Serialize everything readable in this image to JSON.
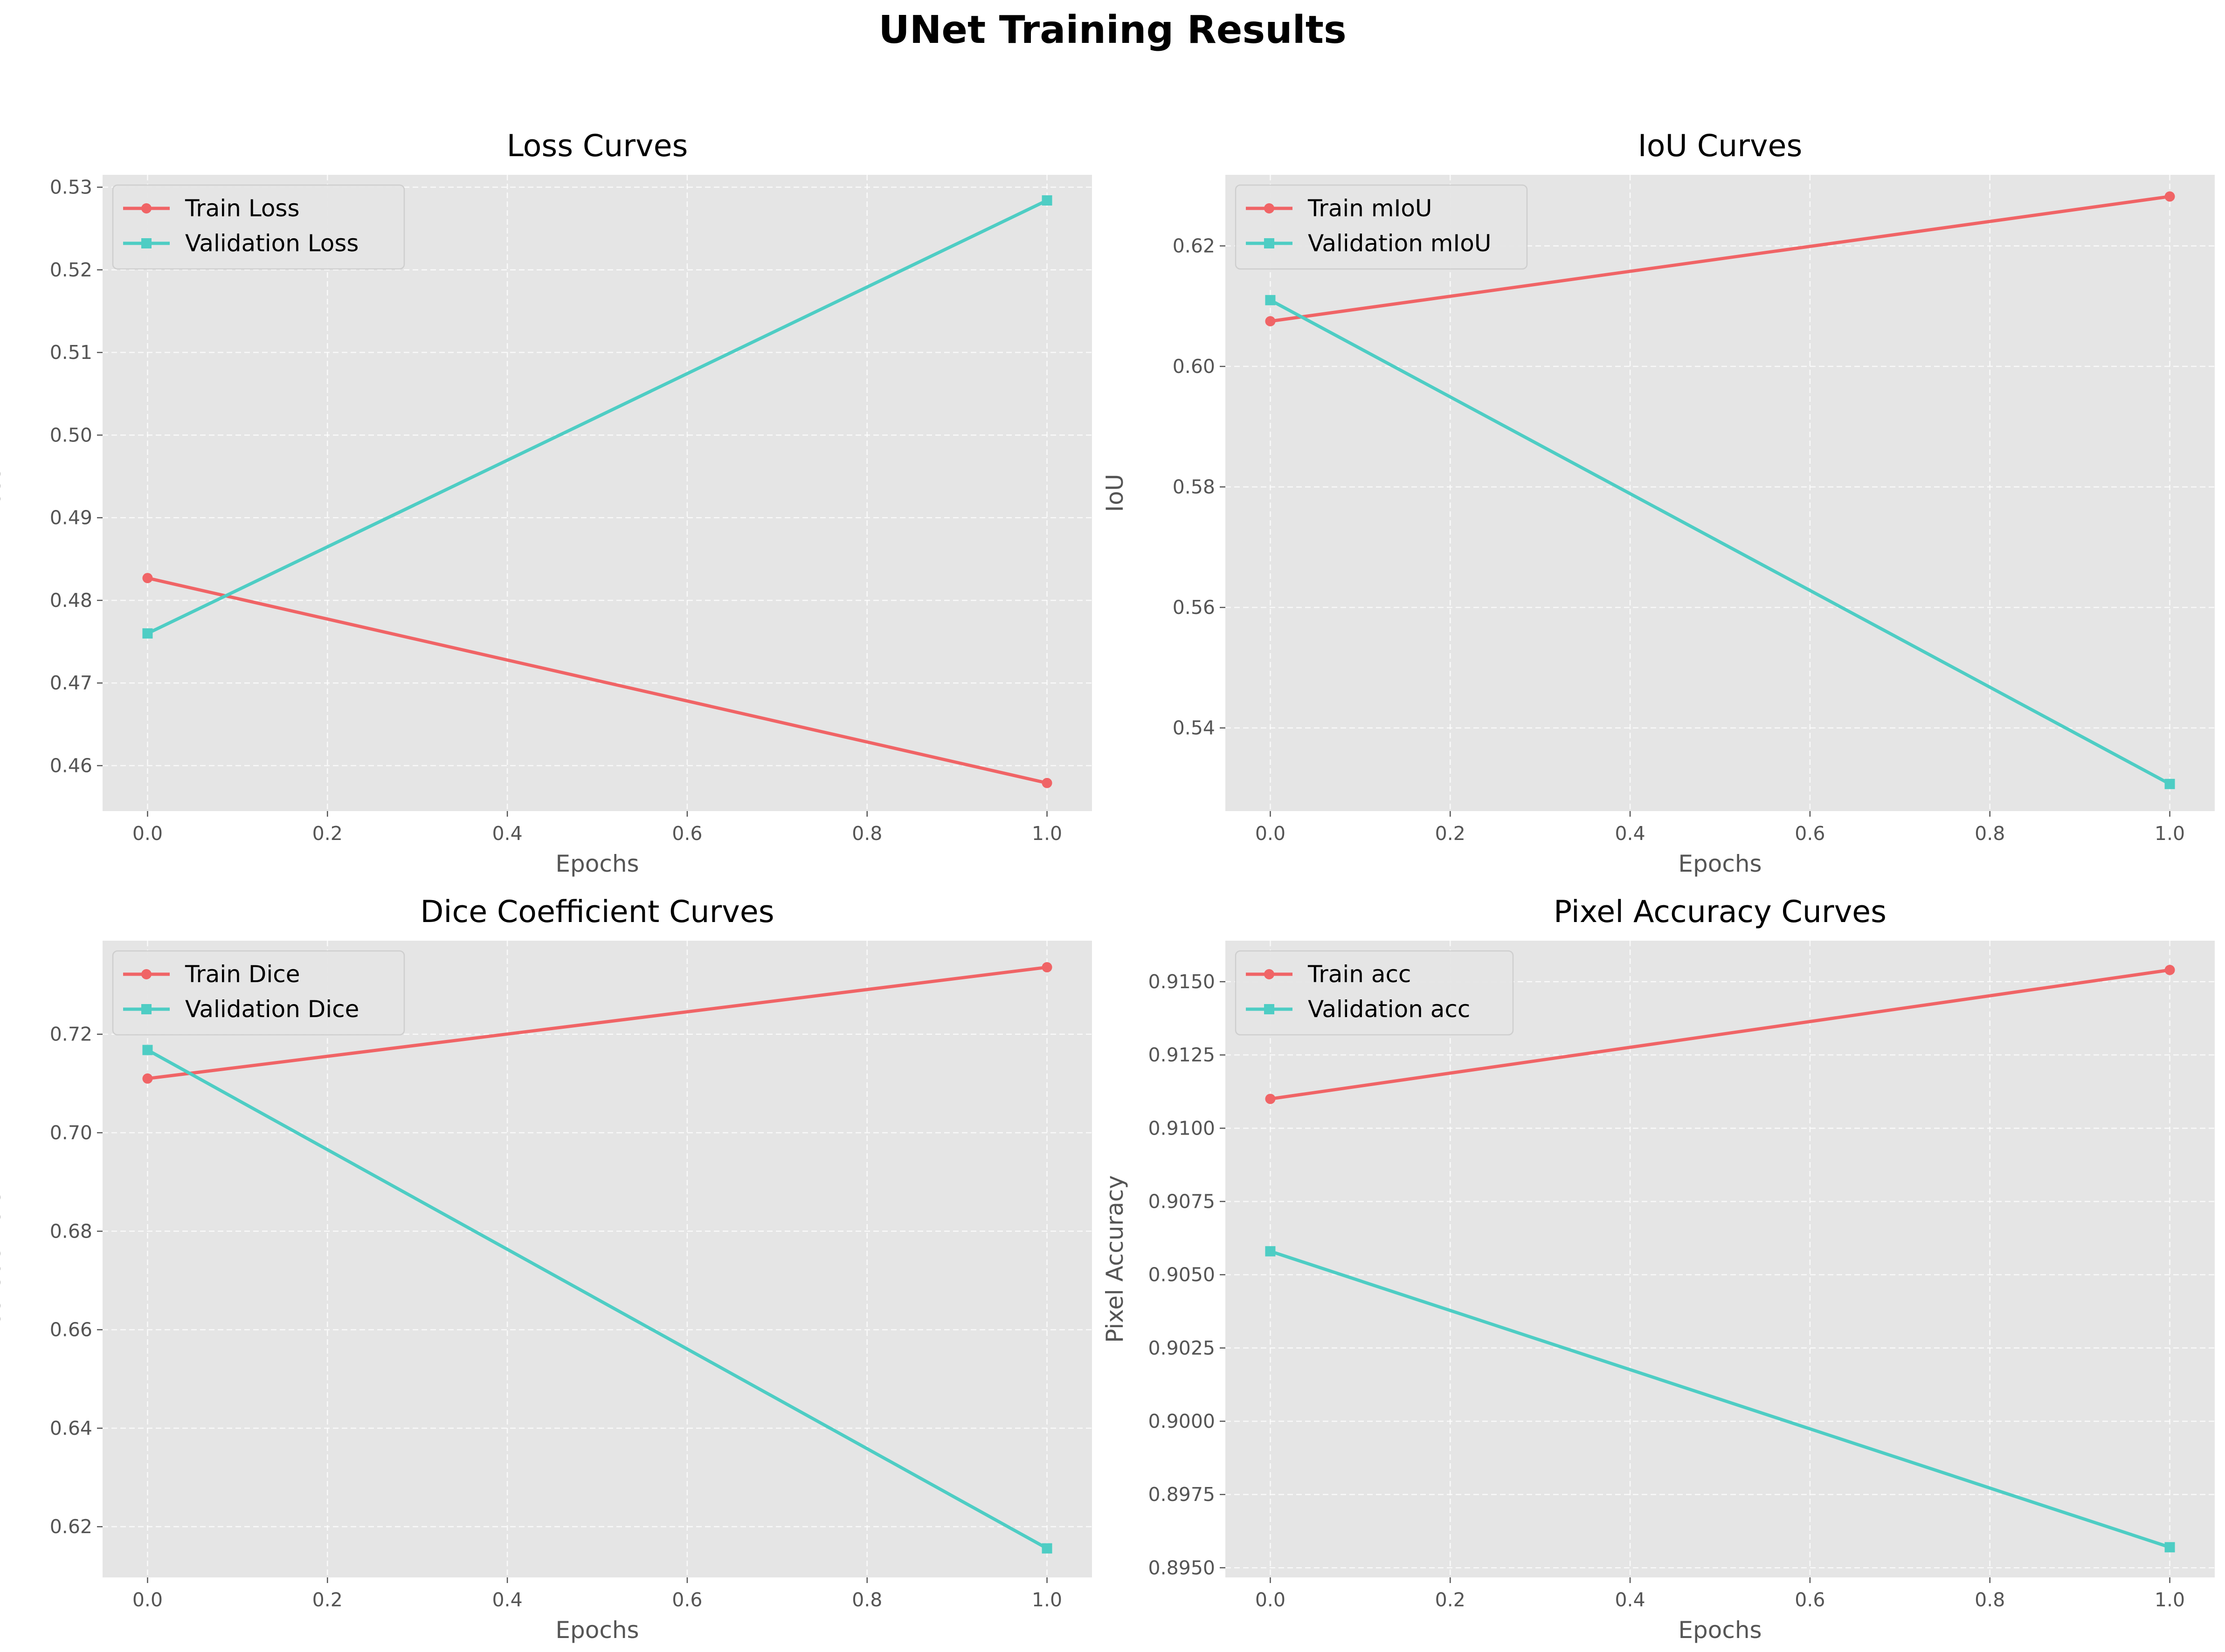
{
  "figure": {
    "title": "UNet Training Results"
  },
  "colors": {
    "train": "#f06466",
    "validation": "#4ecdc4",
    "plot_background": "#e5e5e5"
  },
  "chart_data": [
    {
      "id": "loss",
      "type": "line",
      "title": "Loss Curves",
      "xlabel": "Epochs",
      "ylabel": "Loss",
      "legend_position": "upper-left",
      "grid": true,
      "xlim": [
        -0.05,
        1.05
      ],
      "ylim": [
        0.4545,
        0.5315
      ],
      "x_ticks": [
        0.0,
        0.2,
        0.4,
        0.6,
        0.8,
        1.0
      ],
      "x_tick_labels": [
        "0.0",
        "0.2",
        "0.4",
        "0.6",
        "0.8",
        "1.0"
      ],
      "y_ticks": [
        0.46,
        0.47,
        0.48,
        0.49,
        0.5,
        0.51,
        0.52,
        0.53
      ],
      "y_tick_labels": [
        "0.46",
        "0.47",
        "0.48",
        "0.49",
        "0.50",
        "0.51",
        "0.52",
        "0.53"
      ],
      "x": [
        0,
        1
      ],
      "series": [
        {
          "name": "Train Loss",
          "values": [
            0.4827,
            0.4579
          ],
          "marker": "circle",
          "color_key": "train"
        },
        {
          "name": "Validation Loss",
          "values": [
            0.476,
            0.5284
          ],
          "marker": "square",
          "color_key": "validation"
        }
      ]
    },
    {
      "id": "iou",
      "type": "line",
      "title": "IoU Curves",
      "xlabel": "Epochs",
      "ylabel": "IoU",
      "legend_position": "upper-left",
      "grid": true,
      "xlim": [
        -0.05,
        1.05
      ],
      "ylim": [
        0.5262,
        0.6318
      ],
      "x_ticks": [
        0.0,
        0.2,
        0.4,
        0.6,
        0.8,
        1.0
      ],
      "x_tick_labels": [
        "0.0",
        "0.2",
        "0.4",
        "0.6",
        "0.8",
        "1.0"
      ],
      "y_ticks": [
        0.54,
        0.56,
        0.58,
        0.6,
        0.62
      ],
      "y_tick_labels": [
        "0.54",
        "0.56",
        "0.58",
        "0.60",
        "0.62"
      ],
      "x": [
        0,
        1
      ],
      "series": [
        {
          "name": "Train mIoU",
          "values": [
            0.6075,
            0.6282
          ],
          "marker": "circle",
          "color_key": "train"
        },
        {
          "name": "Validation mIoU",
          "values": [
            0.611,
            0.5307
          ],
          "marker": "square",
          "color_key": "validation"
        }
      ]
    },
    {
      "id": "dice",
      "type": "line",
      "title": "Dice Coefficient Curves",
      "xlabel": "Epochs",
      "ylabel": "Dice Coefficient",
      "legend_position": "upper-left",
      "grid": true,
      "xlim": [
        -0.05,
        1.05
      ],
      "ylim": [
        0.6097,
        0.739
      ],
      "x_ticks": [
        0.0,
        0.2,
        0.4,
        0.6,
        0.8,
        1.0
      ],
      "x_tick_labels": [
        "0.0",
        "0.2",
        "0.4",
        "0.6",
        "0.8",
        "1.0"
      ],
      "y_ticks": [
        0.62,
        0.64,
        0.66,
        0.68,
        0.7,
        0.72
      ],
      "y_tick_labels": [
        "0.62",
        "0.64",
        "0.66",
        "0.68",
        "0.70",
        "0.72"
      ],
      "x": [
        0,
        1
      ],
      "series": [
        {
          "name": "Train Dice",
          "values": [
            0.711,
            0.7336
          ],
          "marker": "circle",
          "color_key": "train"
        },
        {
          "name": "Validation Dice",
          "values": [
            0.7168,
            0.6156
          ],
          "marker": "square",
          "color_key": "validation"
        }
      ]
    },
    {
      "id": "pixel_accuracy",
      "type": "line",
      "title": "Pixel Accuracy Curves",
      "xlabel": "Epochs",
      "ylabel": "Pixel Accuracy",
      "legend_position": "upper-left",
      "grid": true,
      "xlim": [
        -0.05,
        1.05
      ],
      "ylim": [
        0.89467,
        0.9164
      ],
      "x_ticks": [
        0.0,
        0.2,
        0.4,
        0.6,
        0.8,
        1.0
      ],
      "x_tick_labels": [
        "0.0",
        "0.2",
        "0.4",
        "0.6",
        "0.8",
        "1.0"
      ],
      "y_ticks": [
        0.895,
        0.8975,
        0.9,
        0.9025,
        0.905,
        0.9075,
        0.91,
        0.9125,
        0.915
      ],
      "y_tick_labels": [
        "0.8950",
        "0.8975",
        "0.9000",
        "0.9025",
        "0.9050",
        "0.9075",
        "0.9100",
        "0.9125",
        "0.9150"
      ],
      "x": [
        0,
        1
      ],
      "series": [
        {
          "name": "Train acc",
          "values": [
            0.911,
            0.9154
          ],
          "marker": "circle",
          "color_key": "train"
        },
        {
          "name": "Validation acc",
          "values": [
            0.9058,
            0.8957
          ],
          "marker": "square",
          "color_key": "validation"
        }
      ]
    }
  ]
}
